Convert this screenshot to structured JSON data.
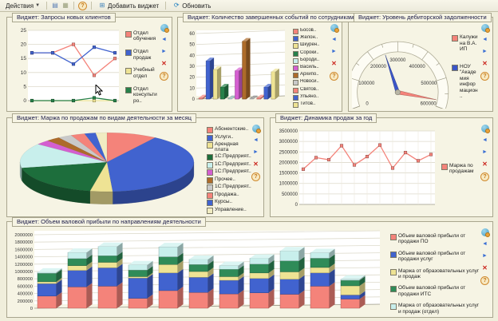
{
  "toolbar": {
    "actions_label": "Действия",
    "add_widget_label": "Добавить виджет",
    "refresh_label": "Обновить",
    "icons": [
      {
        "name": "window-icon",
        "glyph": "▤"
      },
      {
        "name": "list-icon",
        "glyph": "▦"
      },
      {
        "name": "help-icon",
        "glyph": "?"
      },
      {
        "name": "add-widget-icon",
        "glyph": "⊞"
      },
      {
        "name": "refresh-icon",
        "glyph": "⟳"
      }
    ]
  },
  "widget_icons": [
    {
      "name": "configure-icon",
      "glyph": ""
    },
    {
      "name": "prev-icon",
      "glyph": "◄"
    },
    {
      "name": "next-icon",
      "glyph": "►"
    },
    {
      "name": "delete-icon",
      "glyph": "✕"
    },
    {
      "name": "help-icon",
      "glyph": "?"
    }
  ],
  "widgets": [
    {
      "title": "Виджет: Запросы новых клиентов"
    },
    {
      "title": "Виджет: Количество завершенных событий по сотрудникам"
    },
    {
      "title": "Виджет: Уровень дебиторской задолженности"
    },
    {
      "title": "Виджет: Маржа по продажам по видам деятельности за месяц"
    },
    {
      "title": "Виджет: Динамика продаж за год"
    },
    {
      "title": "Виджет: Объем валовой прибыли по направлениям деятельности"
    }
  ],
  "colors": {
    "page_bg": "#f0eedb",
    "panel_bg": "#f6f4e4",
    "plot_bg": "#ffffff",
    "grid": "#dddacb",
    "border": "#a9a68e"
  },
  "chart_data": [
    {
      "type": "line",
      "title": "Запросы новых клиентов",
      "ylim": [
        0,
        25
      ],
      "ytick_step": 5,
      "grid": true,
      "legend_position": "right",
      "series": [
        {
          "name": "Отдел обучения",
          "color": "#f4837a",
          "values": [
            17,
            17,
            20,
            9,
            15
          ]
        },
        {
          "name": "Отдел продаж",
          "color": "#4163cf",
          "values": [
            17,
            17,
            13,
            19,
            17
          ]
        },
        {
          "name": "Учебный отдел",
          "color": "#eee394",
          "values": [
            0,
            0,
            0,
            0,
            0
          ]
        },
        {
          "name": "Отдел консультиро..",
          "color": "#27814a",
          "values": [
            0,
            0,
            0,
            1,
            0
          ]
        }
      ]
    },
    {
      "type": "bar",
      "title": "Количество завершенных событий по сотрудникам",
      "ylim": [
        0,
        60
      ],
      "ytick_step": 10,
      "grid": true,
      "legend_position": "right",
      "items": [
        {
          "label": "Босов..",
          "color": "#f4837a",
          "value": 1
        },
        {
          "label": "Желон..",
          "color": "#4163cf",
          "value": 35
        },
        {
          "label": "Шкурен..",
          "color": "#eee394",
          "value": 27
        },
        {
          "label": "Сороки..",
          "color": "#27814a",
          "value": 11
        },
        {
          "label": "Бороди..",
          "color": "#c8efec",
          "value": 0
        },
        {
          "label": "Василь..",
          "color": "#d45fd0",
          "value": 26
        },
        {
          "label": "Архипо..",
          "color": "#ad6b2a",
          "value": 53
        },
        {
          "label": "Новоси..",
          "color": "#c9c9c9",
          "value": 0
        },
        {
          "label": "Святов..",
          "color": "#f4837a",
          "value": 1
        },
        {
          "label": "Ульяно..",
          "color": "#4163cf",
          "value": 11
        },
        {
          "label": "Титов..",
          "color": "#eee394",
          "value": 25
        }
      ]
    },
    {
      "type": "gauge",
      "title": "Уровень дебиторской задолженности",
      "min": 0,
      "max": 600000,
      "tick_step": 100000,
      "legend_position": "right",
      "needles": [
        {
          "name": "Калужина В.А. ИП",
          "color": "#f4837a",
          "value": 575000
        },
        {
          "name": "НОУ \"Академия информацион..",
          "color": "#3b55c8",
          "value": 250000
        }
      ]
    },
    {
      "type": "pie",
      "title": "Маржа по продажам по видам деятельности за месяц",
      "legend_position": "right",
      "slices": [
        {
          "label": "Абонентские..",
          "color": "#f4837a",
          "value": 9
        },
        {
          "label": "Услуги..",
          "color": "#4163cf",
          "value": 38
        },
        {
          "label": "Арендная плата",
          "color": "#eee394",
          "value": 4
        },
        {
          "label": "1С:Предприят..",
          "color": "#1d6e3c",
          "value": 18
        },
        {
          "label": "1С:Предприят..",
          "color": "#c8efec",
          "value": 13
        },
        {
          "label": "1С:Предприят..",
          "color": "#d45fd0",
          "value": 2.5
        },
        {
          "label": "Прочее..",
          "color": "#ad6b2a",
          "value": 2.5
        },
        {
          "label": "1С:Предприят..",
          "color": "#c9c9c9",
          "value": 2.5
        },
        {
          "label": "Продажа..",
          "color": "#f4837a",
          "value": 2.5
        },
        {
          "label": "Курсы..",
          "color": "#4163cf",
          "value": 2
        },
        {
          "label": "Управление..",
          "color": "#f1ecc2",
          "value": 2
        }
      ]
    },
    {
      "type": "line",
      "title": "Динамика продаж за год",
      "ylim": [
        0,
        3500000
      ],
      "ytick_step": 500000,
      "grid": true,
      "vgrid": true,
      "pad_left": 32,
      "tick_font": 6,
      "legend_position": "right",
      "series": [
        {
          "name": "Маржа по продажам",
          "color": "#f4837a",
          "values": [
            1680000,
            2230000,
            2130000,
            2800000,
            1880000,
            2280000,
            2830000,
            1730000,
            2470000,
            2080000,
            2380000
          ]
        }
      ]
    },
    {
      "type": "stacked-bar",
      "title": "Объем валовой прибыли по направлениям деятельности",
      "ylim": [
        0,
        2000000
      ],
      "ytick_step": 200000,
      "grid": true,
      "legend_position": "right",
      "series": [
        {
          "name": "Объем валовой прибыли от продажи ПО",
          "color": "#f4837a"
        },
        {
          "name": "Объем валовой прибыли от продажи услуг",
          "color": "#4163cf"
        },
        {
          "name": "Маржа от образовательных услуг и продаж",
          "color": "#eee394"
        },
        {
          "name": "Объем валовой прибыли от продажи ИТС",
          "color": "#2f8b58"
        },
        {
          "name": "Маржа от образовательных услуг и продаж (отдел)",
          "color": "#c8efec"
        }
      ],
      "bars": [
        [
          330000,
          340000,
          50000,
          230000,
          30000
        ],
        [
          580000,
          450000,
          130000,
          190000,
          170000
        ],
        [
          600000,
          500000,
          150000,
          180000,
          250000
        ],
        [
          270000,
          550000,
          40000,
          180000,
          140000
        ],
        [
          480000,
          480000,
          230000,
          210000,
          270000
        ],
        [
          430000,
          410000,
          160000,
          190000,
          140000
        ],
        [
          390000,
          370000,
          100000,
          200000,
          100000
        ],
        [
          420000,
          390000,
          150000,
          240000,
          160000
        ],
        [
          380000,
          410000,
          200000,
          300000,
          270000
        ],
        [
          600000,
          360000,
          150000,
          250000,
          150000
        ],
        [
          250000,
          110000,
          250000,
          150000,
          30000
        ]
      ]
    }
  ]
}
